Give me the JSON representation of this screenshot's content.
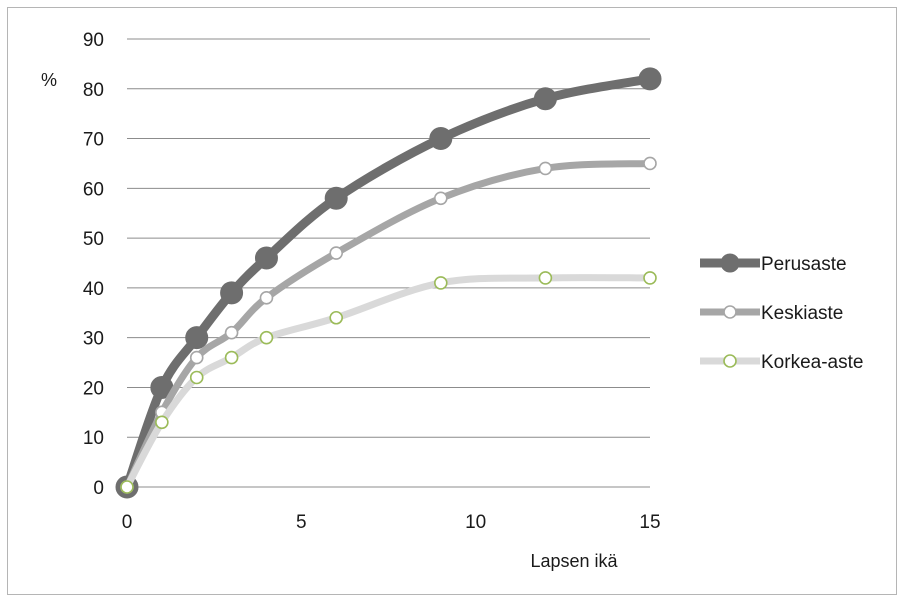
{
  "chart_data": {
    "type": "line",
    "title": "",
    "xlabel": "Lapsen ikä",
    "ylabel": "%",
    "xlim": [
      0,
      15
    ],
    "ylim": [
      0,
      90
    ],
    "x_ticks": [
      0,
      5,
      10,
      15
    ],
    "y_ticks": [
      0,
      10,
      20,
      30,
      40,
      50,
      60,
      70,
      80,
      90
    ],
    "grid": "horizontal",
    "legend_position": "right",
    "series": [
      {
        "name": "Perusaste",
        "color": "#6e6e6e",
        "marker": "filled-circle",
        "x": [
          0,
          1,
          2,
          3,
          4,
          6,
          9,
          12,
          15
        ],
        "y": [
          0,
          20,
          30,
          39,
          46,
          58,
          70,
          78,
          82
        ]
      },
      {
        "name": "Keskiaste",
        "color": "#a6a6a6",
        "marker": "hollow-circle",
        "x": [
          0,
          1,
          2,
          3,
          4,
          6,
          9,
          12,
          15
        ],
        "y": [
          0,
          15,
          26,
          31,
          38,
          47,
          58,
          64,
          65
        ]
      },
      {
        "name": "Korkea-aste",
        "color": "#d9d9d9",
        "marker_color": "#9bbb59",
        "marker": "hollow-circle",
        "x": [
          0,
          1,
          2,
          3,
          4,
          6,
          9,
          12,
          15
        ],
        "y": [
          0,
          13,
          22,
          26,
          30,
          34,
          41,
          42,
          42
        ]
      }
    ]
  }
}
